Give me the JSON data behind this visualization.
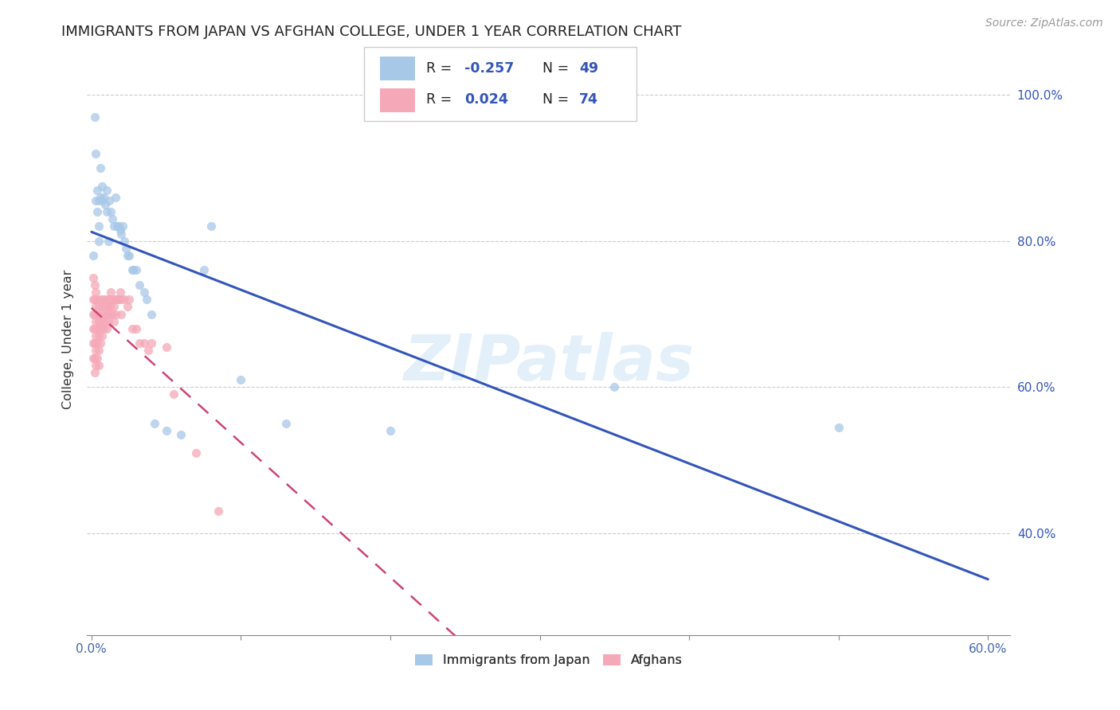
{
  "title": "IMMIGRANTS FROM JAPAN VS AFGHAN COLLEGE, UNDER 1 YEAR CORRELATION CHART",
  "source": "Source: ZipAtlas.com",
  "ylabel": "College, Under 1 year",
  "xlim_min": -0.003,
  "xlim_max": 0.615,
  "ylim_min": 0.26,
  "ylim_max": 1.07,
  "xtick_vals": [
    0.0,
    0.1,
    0.2,
    0.3,
    0.4,
    0.5,
    0.6
  ],
  "xtick_labels_show": [
    "0.0%",
    "",
    "",
    "",
    "",
    "",
    "60.0%"
  ],
  "ytick_vals": [
    0.4,
    0.6,
    0.8,
    1.0
  ],
  "ytick_labels": [
    "40.0%",
    "60.0%",
    "80.0%",
    "100.0%"
  ],
  "japan_color": "#a8c8e8",
  "afghan_color": "#f5a8b8",
  "japan_line_color": "#3355bb",
  "afghan_line_color": "#cc4477",
  "japan_R": -0.257,
  "japan_N": 49,
  "afghan_R": 0.024,
  "afghan_N": 74,
  "watermark": "ZIPatlas",
  "japan_x": [
    0.001,
    0.002,
    0.003,
    0.003,
    0.004,
    0.004,
    0.005,
    0.005,
    0.005,
    0.006,
    0.006,
    0.007,
    0.007,
    0.008,
    0.009,
    0.01,
    0.01,
    0.011,
    0.012,
    0.013,
    0.014,
    0.015,
    0.016,
    0.017,
    0.018,
    0.019,
    0.02,
    0.021,
    0.022,
    0.023,
    0.024,
    0.025,
    0.027,
    0.028,
    0.03,
    0.032,
    0.035,
    0.037,
    0.04,
    0.042,
    0.05,
    0.06,
    0.075,
    0.08,
    0.1,
    0.13,
    0.2,
    0.35,
    0.5
  ],
  "japan_y": [
    0.78,
    0.97,
    0.92,
    0.855,
    0.87,
    0.84,
    0.855,
    0.82,
    0.8,
    0.86,
    0.9,
    0.855,
    0.875,
    0.86,
    0.85,
    0.87,
    0.84,
    0.8,
    0.855,
    0.84,
    0.83,
    0.82,
    0.86,
    0.82,
    0.82,
    0.815,
    0.81,
    0.82,
    0.8,
    0.79,
    0.78,
    0.78,
    0.76,
    0.76,
    0.76,
    0.74,
    0.73,
    0.72,
    0.7,
    0.55,
    0.54,
    0.535,
    0.76,
    0.82,
    0.61,
    0.55,
    0.54,
    0.6,
    0.545
  ],
  "afghan_x": [
    0.001,
    0.001,
    0.001,
    0.001,
    0.001,
    0.001,
    0.002,
    0.002,
    0.002,
    0.002,
    0.002,
    0.002,
    0.002,
    0.003,
    0.003,
    0.003,
    0.003,
    0.003,
    0.003,
    0.004,
    0.004,
    0.004,
    0.004,
    0.004,
    0.005,
    0.005,
    0.005,
    0.005,
    0.005,
    0.006,
    0.006,
    0.006,
    0.006,
    0.007,
    0.007,
    0.007,
    0.008,
    0.008,
    0.008,
    0.009,
    0.009,
    0.01,
    0.01,
    0.01,
    0.011,
    0.011,
    0.012,
    0.012,
    0.013,
    0.013,
    0.014,
    0.014,
    0.015,
    0.015,
    0.016,
    0.016,
    0.017,
    0.018,
    0.019,
    0.02,
    0.02,
    0.022,
    0.024,
    0.025,
    0.027,
    0.03,
    0.032,
    0.035,
    0.038,
    0.04,
    0.05,
    0.055,
    0.07,
    0.085
  ],
  "afghan_y": [
    0.75,
    0.72,
    0.7,
    0.68,
    0.66,
    0.64,
    0.74,
    0.72,
    0.7,
    0.68,
    0.66,
    0.64,
    0.62,
    0.73,
    0.71,
    0.69,
    0.67,
    0.65,
    0.63,
    0.72,
    0.7,
    0.68,
    0.66,
    0.64,
    0.71,
    0.69,
    0.67,
    0.65,
    0.63,
    0.72,
    0.7,
    0.68,
    0.66,
    0.71,
    0.69,
    0.67,
    0.72,
    0.7,
    0.68,
    0.71,
    0.69,
    0.72,
    0.7,
    0.68,
    0.71,
    0.69,
    0.72,
    0.7,
    0.73,
    0.71,
    0.72,
    0.7,
    0.71,
    0.69,
    0.72,
    0.7,
    0.72,
    0.72,
    0.73,
    0.72,
    0.7,
    0.72,
    0.71,
    0.72,
    0.68,
    0.68,
    0.66,
    0.66,
    0.65,
    0.66,
    0.655,
    0.59,
    0.51,
    0.43
  ]
}
